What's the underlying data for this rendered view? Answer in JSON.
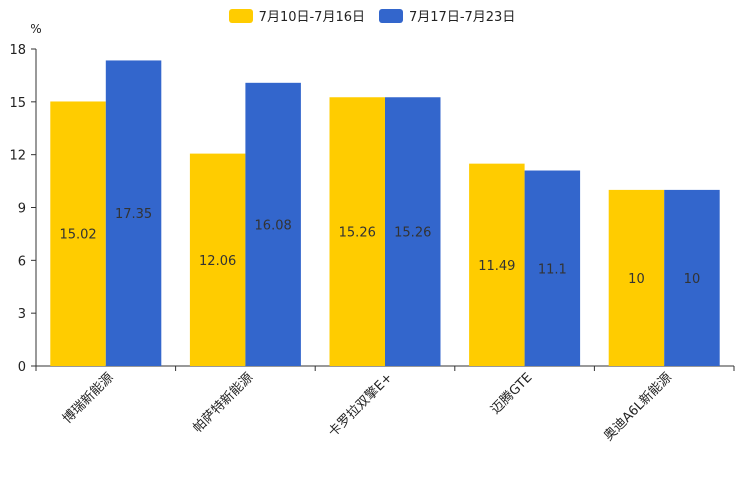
{
  "chart_data": {
    "type": "bar",
    "title": "",
    "xlabel": "",
    "ylabel": "%",
    "ylim": [
      0,
      18
    ],
    "yticks": [
      0,
      3,
      6,
      9,
      12,
      15,
      18
    ],
    "categories": [
      "博瑞新能源",
      "帕萨特新能源",
      "卡罗拉双擎E+",
      "迈腾GTE",
      "奥迪A6L新能源"
    ],
    "series": [
      {
        "name": "7月10日-7月16日",
        "color": "#FFCC00",
        "values": [
          15.02,
          12.06,
          15.26,
          11.49,
          10
        ]
      },
      {
        "name": "7月17日-7月23日",
        "color": "#3366CC",
        "values": [
          17.35,
          16.08,
          15.26,
          11.1,
          10
        ]
      }
    ],
    "legend_position": "top-center",
    "grid": false
  }
}
